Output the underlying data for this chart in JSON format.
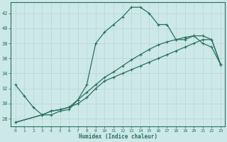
{
  "xlabel": "Humidex (Indice chaleur)",
  "background_color": "#cce8e8",
  "grid_color": "#b8d4d4",
  "line_color": "#2a7060",
  "xlim": [
    -0.5,
    23.5
  ],
  "ylim": [
    27.0,
    43.5
  ],
  "xticks": [
    0,
    1,
    2,
    3,
    4,
    5,
    6,
    7,
    8,
    9,
    10,
    11,
    12,
    13,
    14,
    15,
    16,
    17,
    18,
    19,
    20,
    21,
    22,
    23
  ],
  "yticks": [
    28,
    30,
    32,
    34,
    36,
    38,
    40,
    42
  ],
  "series1_x": [
    0,
    1,
    2,
    3,
    4,
    5,
    6,
    7,
    8,
    9,
    10,
    11,
    12,
    13,
    14,
    15,
    16,
    17,
    18,
    19,
    20,
    21,
    22,
    23
  ],
  "series1_y": [
    32.5,
    31.0,
    29.5,
    28.5,
    28.5,
    29.0,
    29.2,
    30.5,
    32.5,
    38.0,
    39.5,
    40.5,
    41.5,
    42.8,
    42.8,
    42.0,
    40.5,
    40.5,
    38.5,
    38.5,
    39.0,
    38.0,
    37.5,
    35.2
  ],
  "series2_x": [
    0,
    3,
    4,
    5,
    6,
    7,
    8,
    9,
    10,
    11,
    12,
    13,
    14,
    15,
    16,
    17,
    18,
    19,
    20,
    21,
    22,
    23
  ],
  "series2_y": [
    27.5,
    28.5,
    29.0,
    29.2,
    29.5,
    30.0,
    30.8,
    32.0,
    33.0,
    33.5,
    34.0,
    34.5,
    35.0,
    35.5,
    36.0,
    36.5,
    37.0,
    37.5,
    38.0,
    38.5,
    38.5,
    35.2
  ],
  "series3_x": [
    0,
    3,
    4,
    5,
    6,
    7,
    8,
    9,
    10,
    11,
    12,
    13,
    14,
    15,
    16,
    17,
    18,
    19,
    20,
    21,
    22,
    23
  ],
  "series3_y": [
    27.5,
    28.5,
    29.0,
    29.2,
    29.5,
    30.5,
    31.5,
    32.5,
    33.5,
    34.2,
    35.0,
    35.8,
    36.5,
    37.2,
    37.8,
    38.2,
    38.5,
    38.8,
    39.0,
    39.0,
    38.5,
    35.2
  ],
  "marker_x1": [
    0,
    1,
    2,
    3,
    4,
    5,
    6,
    7,
    8,
    9,
    10,
    11,
    12,
    13,
    14,
    15,
    16,
    17,
    18,
    19,
    20,
    21,
    22,
    23
  ],
  "marker_y1": [
    32.5,
    31.0,
    29.5,
    28.5,
    28.5,
    29.0,
    29.2,
    30.5,
    32.5,
    38.0,
    39.5,
    40.5,
    41.5,
    42.8,
    42.8,
    42.0,
    40.5,
    40.5,
    38.5,
    38.5,
    39.0,
    38.0,
    37.5,
    35.2
  ]
}
